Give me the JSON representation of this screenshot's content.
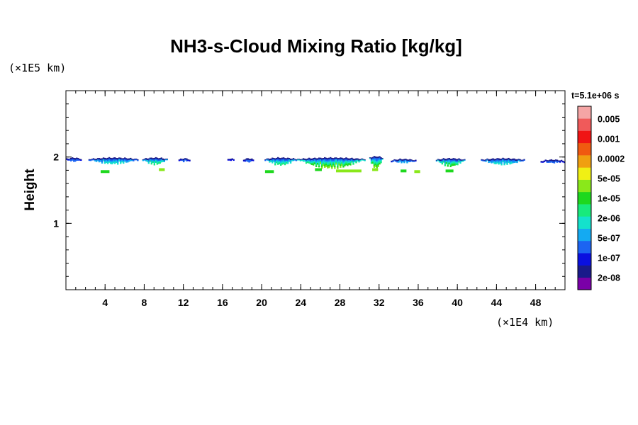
{
  "chart_data": {
    "type": "heatmap",
    "title": "NH3-s-Cloud Mixing Ratio [kg/kg]",
    "xlabel": "",
    "ylabel": "Height",
    "x_unit_label": "(×1E4 km)",
    "y_unit_label": "(×1E5 km)",
    "time_label": "t=5.1e+06 s",
    "xlim": [
      0,
      51
    ],
    "ylim": [
      0,
      3
    ],
    "x_ticks": [
      4,
      8,
      12,
      16,
      20,
      24,
      28,
      32,
      36,
      40,
      44,
      48
    ],
    "x_tick_labels": [
      "4",
      "8",
      "12",
      "16",
      "20",
      "24",
      "28",
      "32",
      "36",
      "40",
      "44",
      "48"
    ],
    "x_minor_step": 1,
    "y_ticks": [
      1,
      2
    ],
    "y_tick_labels": [
      "1",
      "2"
    ],
    "y_minor_step": 0.2,
    "colorbar": {
      "labels": [
        "0.005",
        "0.001",
        "0.0002",
        "5e-05",
        "1e-05",
        "2e-06",
        "5e-07",
        "1e-07",
        "2e-08"
      ],
      "colors": [
        "#7a00a8",
        "#1a1a8a",
        "#0a10e0",
        "#1c64f2",
        "#14aaf2",
        "#14e2cc",
        "#18ea7c",
        "#1ed81e",
        "#8ae81a",
        "#f0f014",
        "#f0a010",
        "#f05a10",
        "#f01414",
        "#f05a5a",
        "#f5a5a5"
      ]
    },
    "cloud_layer": {
      "description_height_range": [
        1.75,
        2.0
      ],
      "segments": [
        {
          "x": [
            0.0,
            1.6
          ],
          "top": 2.0,
          "depth": 0.06,
          "peak": 3
        },
        {
          "x": [
            2.3,
            7.4
          ],
          "top": 2.0,
          "depth": 0.1,
          "peak": 5
        },
        {
          "x": [
            7.8,
            10.4
          ],
          "top": 2.0,
          "depth": 0.11,
          "peak": 6
        },
        {
          "x": [
            11.5,
            12.7
          ],
          "top": 1.99,
          "depth": 0.05,
          "peak": 3
        },
        {
          "x": [
            16.5,
            17.2
          ],
          "top": 1.99,
          "depth": 0.03,
          "peak": 2
        },
        {
          "x": [
            18.1,
            19.2
          ],
          "top": 1.99,
          "depth": 0.06,
          "peak": 3
        },
        {
          "x": [
            20.3,
            23.6
          ],
          "top": 2.0,
          "depth": 0.12,
          "peak": 6
        },
        {
          "x": [
            23.6,
            30.6
          ],
          "top": 2.0,
          "depth": 0.17,
          "peak": 8
        },
        {
          "x": [
            31.0,
            32.4
          ],
          "top": 2.02,
          "depth": 0.2,
          "peak": 8
        },
        {
          "x": [
            33.2,
            35.8
          ],
          "top": 1.98,
          "depth": 0.06,
          "peak": 4
        },
        {
          "x": [
            37.8,
            40.8
          ],
          "top": 1.99,
          "depth": 0.13,
          "peak": 7
        },
        {
          "x": [
            42.4,
            46.9
          ],
          "top": 1.99,
          "depth": 0.1,
          "peak": 5
        },
        {
          "x": [
            48.5,
            51.0
          ],
          "top": 1.97,
          "depth": 0.05,
          "peak": 3
        }
      ],
      "drops": [
        {
          "x": 4.0,
          "y": 1.78,
          "w": 0.9,
          "level": 7
        },
        {
          "x": 9.8,
          "y": 1.81,
          "w": 0.6,
          "level": 8
        },
        {
          "x": 20.8,
          "y": 1.78,
          "w": 0.9,
          "level": 7
        },
        {
          "x": 25.8,
          "y": 1.81,
          "w": 0.7,
          "level": 7
        },
        {
          "x": 28.9,
          "y": 1.79,
          "w": 2.6,
          "level": 8
        },
        {
          "x": 31.6,
          "y": 1.81,
          "w": 0.6,
          "level": 8
        },
        {
          "x": 34.5,
          "y": 1.79,
          "w": 0.6,
          "level": 7
        },
        {
          "x": 35.9,
          "y": 1.78,
          "w": 0.6,
          "level": 8
        },
        {
          "x": 39.2,
          "y": 1.79,
          "w": 0.8,
          "level": 7
        }
      ]
    }
  }
}
